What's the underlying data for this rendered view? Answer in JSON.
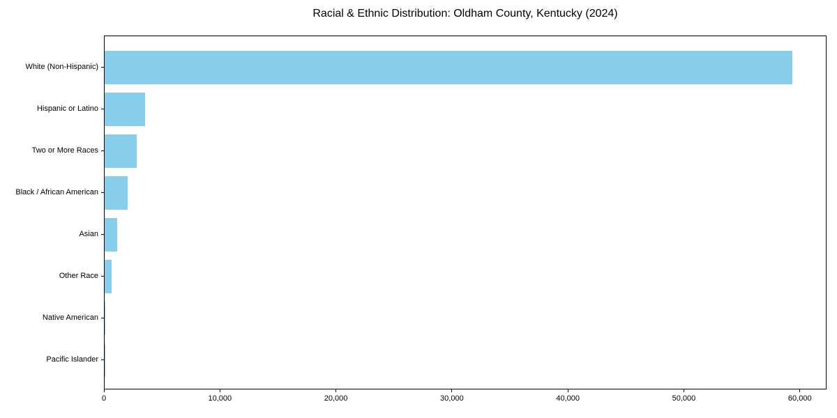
{
  "chart_data": {
    "type": "bar",
    "orientation": "horizontal",
    "title": "Racial & Ethnic Distribution: Oldham County, Kentucky (2024)",
    "categories": [
      "White (Non-Hispanic)",
      "Hispanic or Latino",
      "Two or More Races",
      "Black / African American",
      "Asian",
      "Other Race",
      "Native American",
      "Pacific Islander"
    ],
    "values": [
      59400,
      3490,
      2770,
      1990,
      1060,
      600,
      50,
      20
    ],
    "xlabel": "",
    "ylabel": "",
    "xlim": [
      0,
      62300
    ],
    "x_ticks": [
      0,
      10000,
      20000,
      30000,
      40000,
      50000,
      60000
    ],
    "x_tick_labels": [
      "0",
      "10,000",
      "20,000",
      "30,000",
      "40,000",
      "50,000",
      "60,000"
    ],
    "bar_color": "#87CEEB",
    "axis_color": "#000000",
    "background_color": "#ffffff",
    "grid": false,
    "legend": null
  }
}
